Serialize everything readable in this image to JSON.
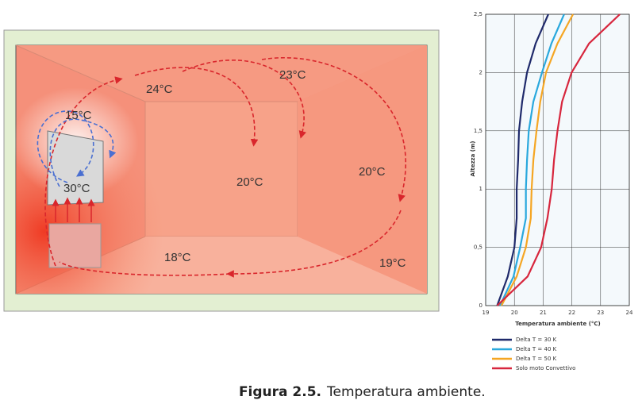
{
  "illustration": {
    "labels": [
      "24°C",
      "23°C",
      "15°C",
      "30°C",
      "20°C",
      "20°C",
      "18°C",
      "19°C"
    ]
  },
  "chart_data": {
    "type": "line",
    "x_label": "Temperatura ambiente (°C)",
    "y_label": "Altezza (m)",
    "xlim": [
      19,
      24
    ],
    "xticks": [
      19,
      20,
      21,
      22,
      23,
      24
    ],
    "ylim": [
      0,
      2.5
    ],
    "yticks": [
      0,
      {
        "value": 0.5,
        "label": "0,5"
      },
      1,
      {
        "value": 1.5,
        "label": "1,5"
      },
      2,
      {
        "value": 2.5,
        "label": "2,5"
      }
    ],
    "grid": true,
    "series": [
      {
        "name": "Delta T = 30 K",
        "color": "#1f2a6b",
        "x": [
          19.4,
          19.77,
          20.0,
          20.08,
          20.08,
          20.13,
          20.16,
          20.27,
          20.44,
          20.74,
          21.18
        ],
        "values": [
          0,
          0.25,
          0.5,
          0.75,
          1,
          1.25,
          1.5,
          1.75,
          2,
          2.25,
          2.5
        ]
      },
      {
        "name": "Delta T = 40 K",
        "color": "#29a8dd",
        "x": [
          19.5,
          19.97,
          20.2,
          20.4,
          20.4,
          20.44,
          20.5,
          20.66,
          20.96,
          21.29,
          21.73
        ],
        "values": [
          0,
          0.25,
          0.5,
          0.75,
          1,
          1.25,
          1.5,
          1.75,
          2,
          2.25,
          2.5
        ]
      },
      {
        "name": "Delta T = 50 K",
        "color": "#f5a623",
        "x": [
          19.55,
          20.08,
          20.4,
          20.57,
          20.6,
          20.66,
          20.77,
          20.9,
          21.1,
          21.5,
          22.04
        ],
        "values": [
          0,
          0.25,
          0.5,
          0.75,
          1,
          1.25,
          1.5,
          1.75,
          2,
          2.25,
          2.5
        ]
      },
      {
        "name": "Solo moto Convettivo",
        "color": "#d7263d",
        "x": [
          19.4,
          20.46,
          20.93,
          21.15,
          21.3,
          21.38,
          21.5,
          21.66,
          21.99,
          22.6,
          23.67
        ],
        "values": [
          0,
          0.25,
          0.5,
          0.75,
          1,
          1.25,
          1.5,
          1.75,
          2,
          2.25,
          2.5
        ]
      }
    ]
  },
  "caption": {
    "label": "Figura 2.5.",
    "text": "Temperatura ambiente."
  }
}
